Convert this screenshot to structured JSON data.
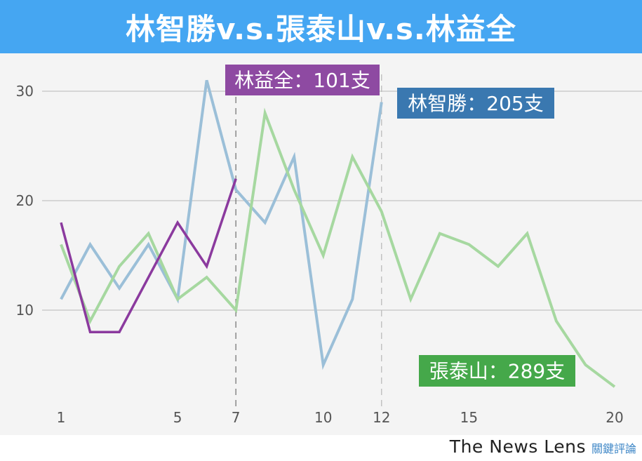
{
  "header": {
    "title": "林智勝v.s.張泰山v.s.林益全"
  },
  "footer": {
    "brand_en": "The News Lens",
    "brand_zh": "關鍵評論"
  },
  "colors": {
    "header_bg": "#45a6f2",
    "plot_bg": "#f4f4f4",
    "lin_zhisheng": "#9bbfd8",
    "zhang_taishan": "#a6d8a0",
    "lin_yiquan": "#8b3a9e",
    "label_lin_zhisheng": "#3a78b0",
    "label_zhang_taishan": "#45a84a",
    "label_lin_yiquan": "#8e4aa2"
  },
  "chart_data": {
    "type": "line",
    "title": "林智勝v.s.張泰山v.s.林益全",
    "xlabel": "",
    "ylabel": "",
    "xlim": [
      1,
      20
    ],
    "ylim": [
      3,
      31
    ],
    "x_ticks": [
      1,
      5,
      7,
      10,
      12,
      15,
      20
    ],
    "y_ticks": [
      10,
      20,
      30
    ],
    "grid": true,
    "series": [
      {
        "key": "lin_zhisheng",
        "x": [
          1,
          2,
          3,
          4,
          5,
          6,
          7,
          8,
          9,
          10,
          11,
          12
        ],
        "values": [
          11,
          16,
          12,
          16,
          11,
          31,
          21,
          18,
          24,
          5,
          11,
          29
        ]
      },
      {
        "key": "zhang_taishan",
        "x": [
          1,
          2,
          3,
          4,
          5,
          6,
          7,
          8,
          9,
          10,
          11,
          12,
          13,
          14,
          15,
          16,
          17,
          18,
          19,
          20
        ],
        "values": [
          16,
          9,
          14,
          17,
          11,
          13,
          10,
          28,
          21,
          15,
          24,
          19,
          11,
          17,
          16,
          14,
          17,
          9,
          5,
          3
        ]
      },
      {
        "key": "lin_yiquan",
        "x": [
          1,
          2,
          3,
          4,
          5,
          6,
          7
        ],
        "values": [
          18,
          8,
          8,
          13,
          18,
          14,
          22
        ]
      }
    ],
    "reference_lines": [
      7,
      12
    ],
    "annotations": [
      {
        "series": "lin_yiquan",
        "text": "林益全：101支"
      },
      {
        "series": "lin_zhisheng",
        "text": "林智勝：205支"
      },
      {
        "series": "zhang_taishan",
        "text": "張泰山：289支"
      }
    ]
  }
}
